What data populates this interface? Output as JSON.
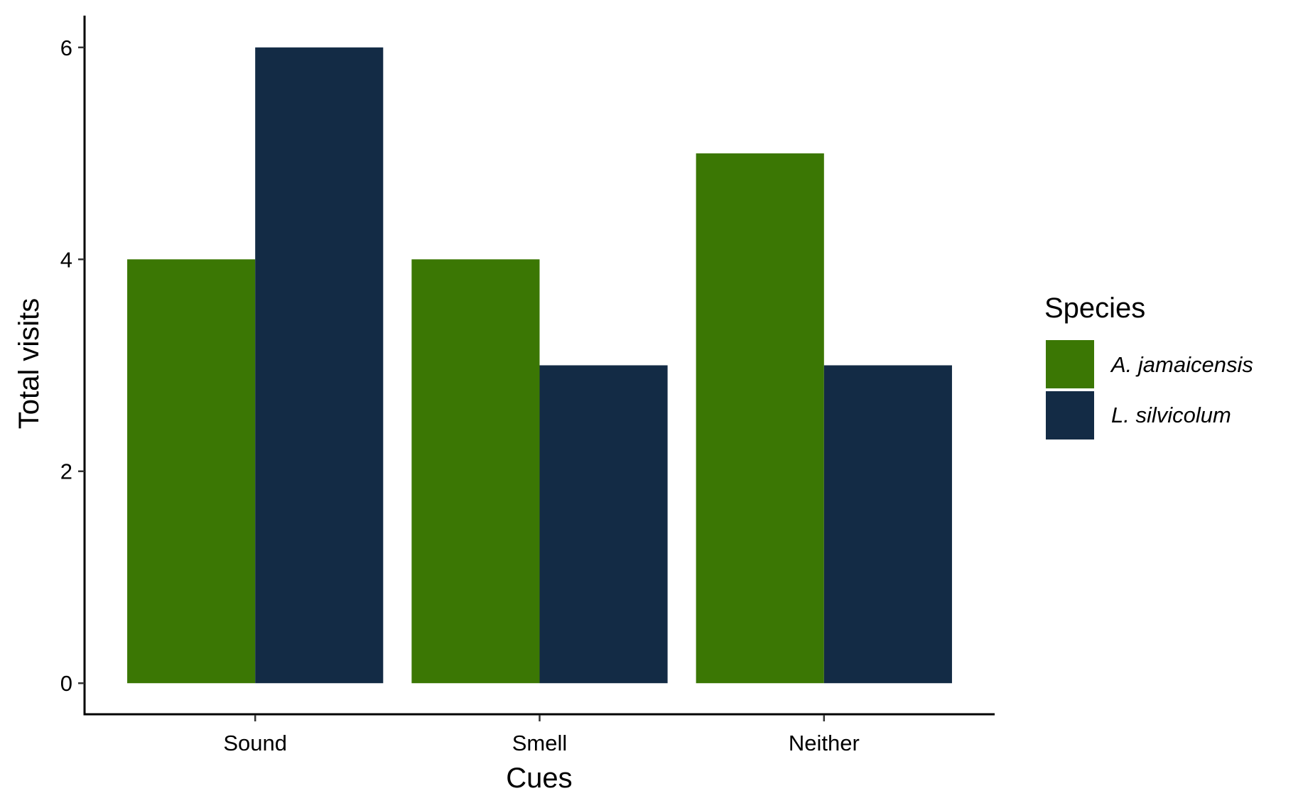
{
  "chart_data": {
    "type": "bar",
    "title": "",
    "xlabel": "Cues",
    "ylabel": "Total visits",
    "categories": [
      "Sound",
      "Smell",
      "Neither"
    ],
    "series": [
      {
        "name": "A. jamaicensis",
        "values": [
          4,
          4,
          5
        ],
        "color": "#3b7704"
      },
      {
        "name": "L. silvicolum",
        "values": [
          6,
          3,
          3
        ],
        "color": "#132b45"
      }
    ],
    "ylim": [
      -0.3,
      6.3
    ],
    "yticks": [
      0,
      2,
      4,
      6
    ],
    "grid": false,
    "legend": {
      "title": "Species",
      "position": "right"
    }
  }
}
